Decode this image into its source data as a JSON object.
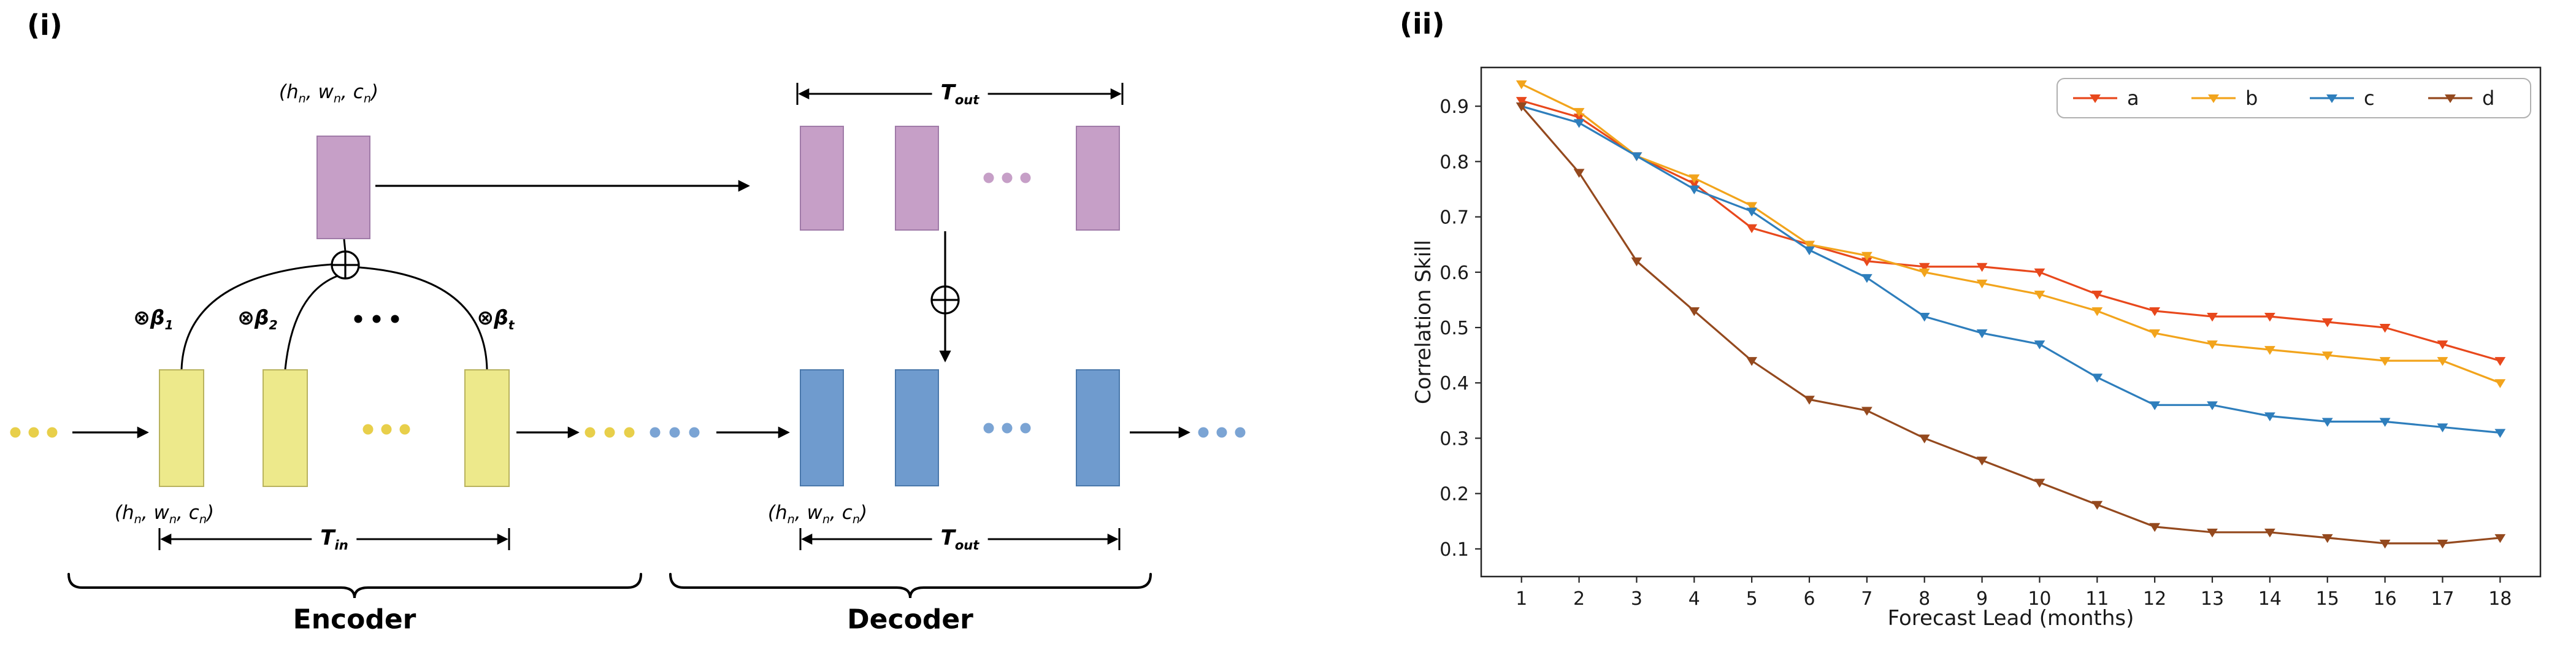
{
  "panels": {
    "i": "(i)",
    "ii": "(ii)"
  },
  "diagram": {
    "state_dims": "(h_n, w_n, c_n)",
    "t_in": "T_in",
    "t_out": "T_out",
    "beta_1": "⊗β_1",
    "beta_2": "⊗β_2",
    "beta_t": "⊗β_t",
    "encoder_label": "Encoder",
    "decoder_label": "Decoder"
  },
  "colors": {
    "encoder_block": "#ede98b",
    "encoder_block_edge": "#b9b35e",
    "state_block": "#c69fc7",
    "state_block_edge": "#a07ba8",
    "decoder_block": "#6f9bce",
    "decoder_block_edge": "#4a78ab",
    "yellow_dot": "#e8cf4a",
    "blue_dot": "#7ba4d4",
    "purple_dot": "#c69fc7",
    "black": "#000000"
  },
  "chart_data": {
    "type": "line",
    "title": "",
    "xlabel": "Forecast Lead (months)",
    "ylabel": "Correlation Skill",
    "marker": "triangle-down",
    "grid": false,
    "legend_position": "upper right horizontal",
    "x": [
      1,
      2,
      3,
      4,
      5,
      6,
      7,
      8,
      9,
      10,
      11,
      12,
      13,
      14,
      15,
      16,
      17,
      18
    ],
    "xticks": [
      1,
      2,
      3,
      4,
      5,
      6,
      7,
      8,
      9,
      10,
      11,
      12,
      13,
      14,
      15,
      16,
      17,
      18
    ],
    "yticks": [
      0.1,
      0.2,
      0.3,
      0.4,
      0.5,
      0.6,
      0.7,
      0.8,
      0.9
    ],
    "xlim": [
      0.3,
      18.7
    ],
    "ylim": [
      0.05,
      0.97
    ],
    "series": [
      {
        "name": "a",
        "color": "#e8481c",
        "values": [
          0.91,
          0.88,
          0.81,
          0.76,
          0.68,
          0.65,
          0.62,
          0.61,
          0.61,
          0.6,
          0.56,
          0.53,
          0.52,
          0.52,
          0.51,
          0.5,
          0.47,
          0.44
        ]
      },
      {
        "name": "b",
        "color": "#f2a41c",
        "values": [
          0.94,
          0.89,
          0.81,
          0.77,
          0.72,
          0.65,
          0.63,
          0.6,
          0.58,
          0.56,
          0.53,
          0.49,
          0.47,
          0.46,
          0.45,
          0.44,
          0.44,
          0.4
        ]
      },
      {
        "name": "c",
        "color": "#2e7ebc",
        "values": [
          0.9,
          0.87,
          0.81,
          0.75,
          0.71,
          0.64,
          0.59,
          0.52,
          0.49,
          0.47,
          0.41,
          0.36,
          0.36,
          0.34,
          0.33,
          0.33,
          0.32,
          0.31
        ]
      },
      {
        "name": "d",
        "color": "#94491e",
        "values": [
          0.9,
          0.78,
          0.62,
          0.53,
          0.44,
          0.37,
          0.35,
          0.3,
          0.26,
          0.22,
          0.18,
          0.14,
          0.13,
          0.13,
          0.12,
          0.11,
          0.11,
          0.12
        ]
      }
    ]
  }
}
